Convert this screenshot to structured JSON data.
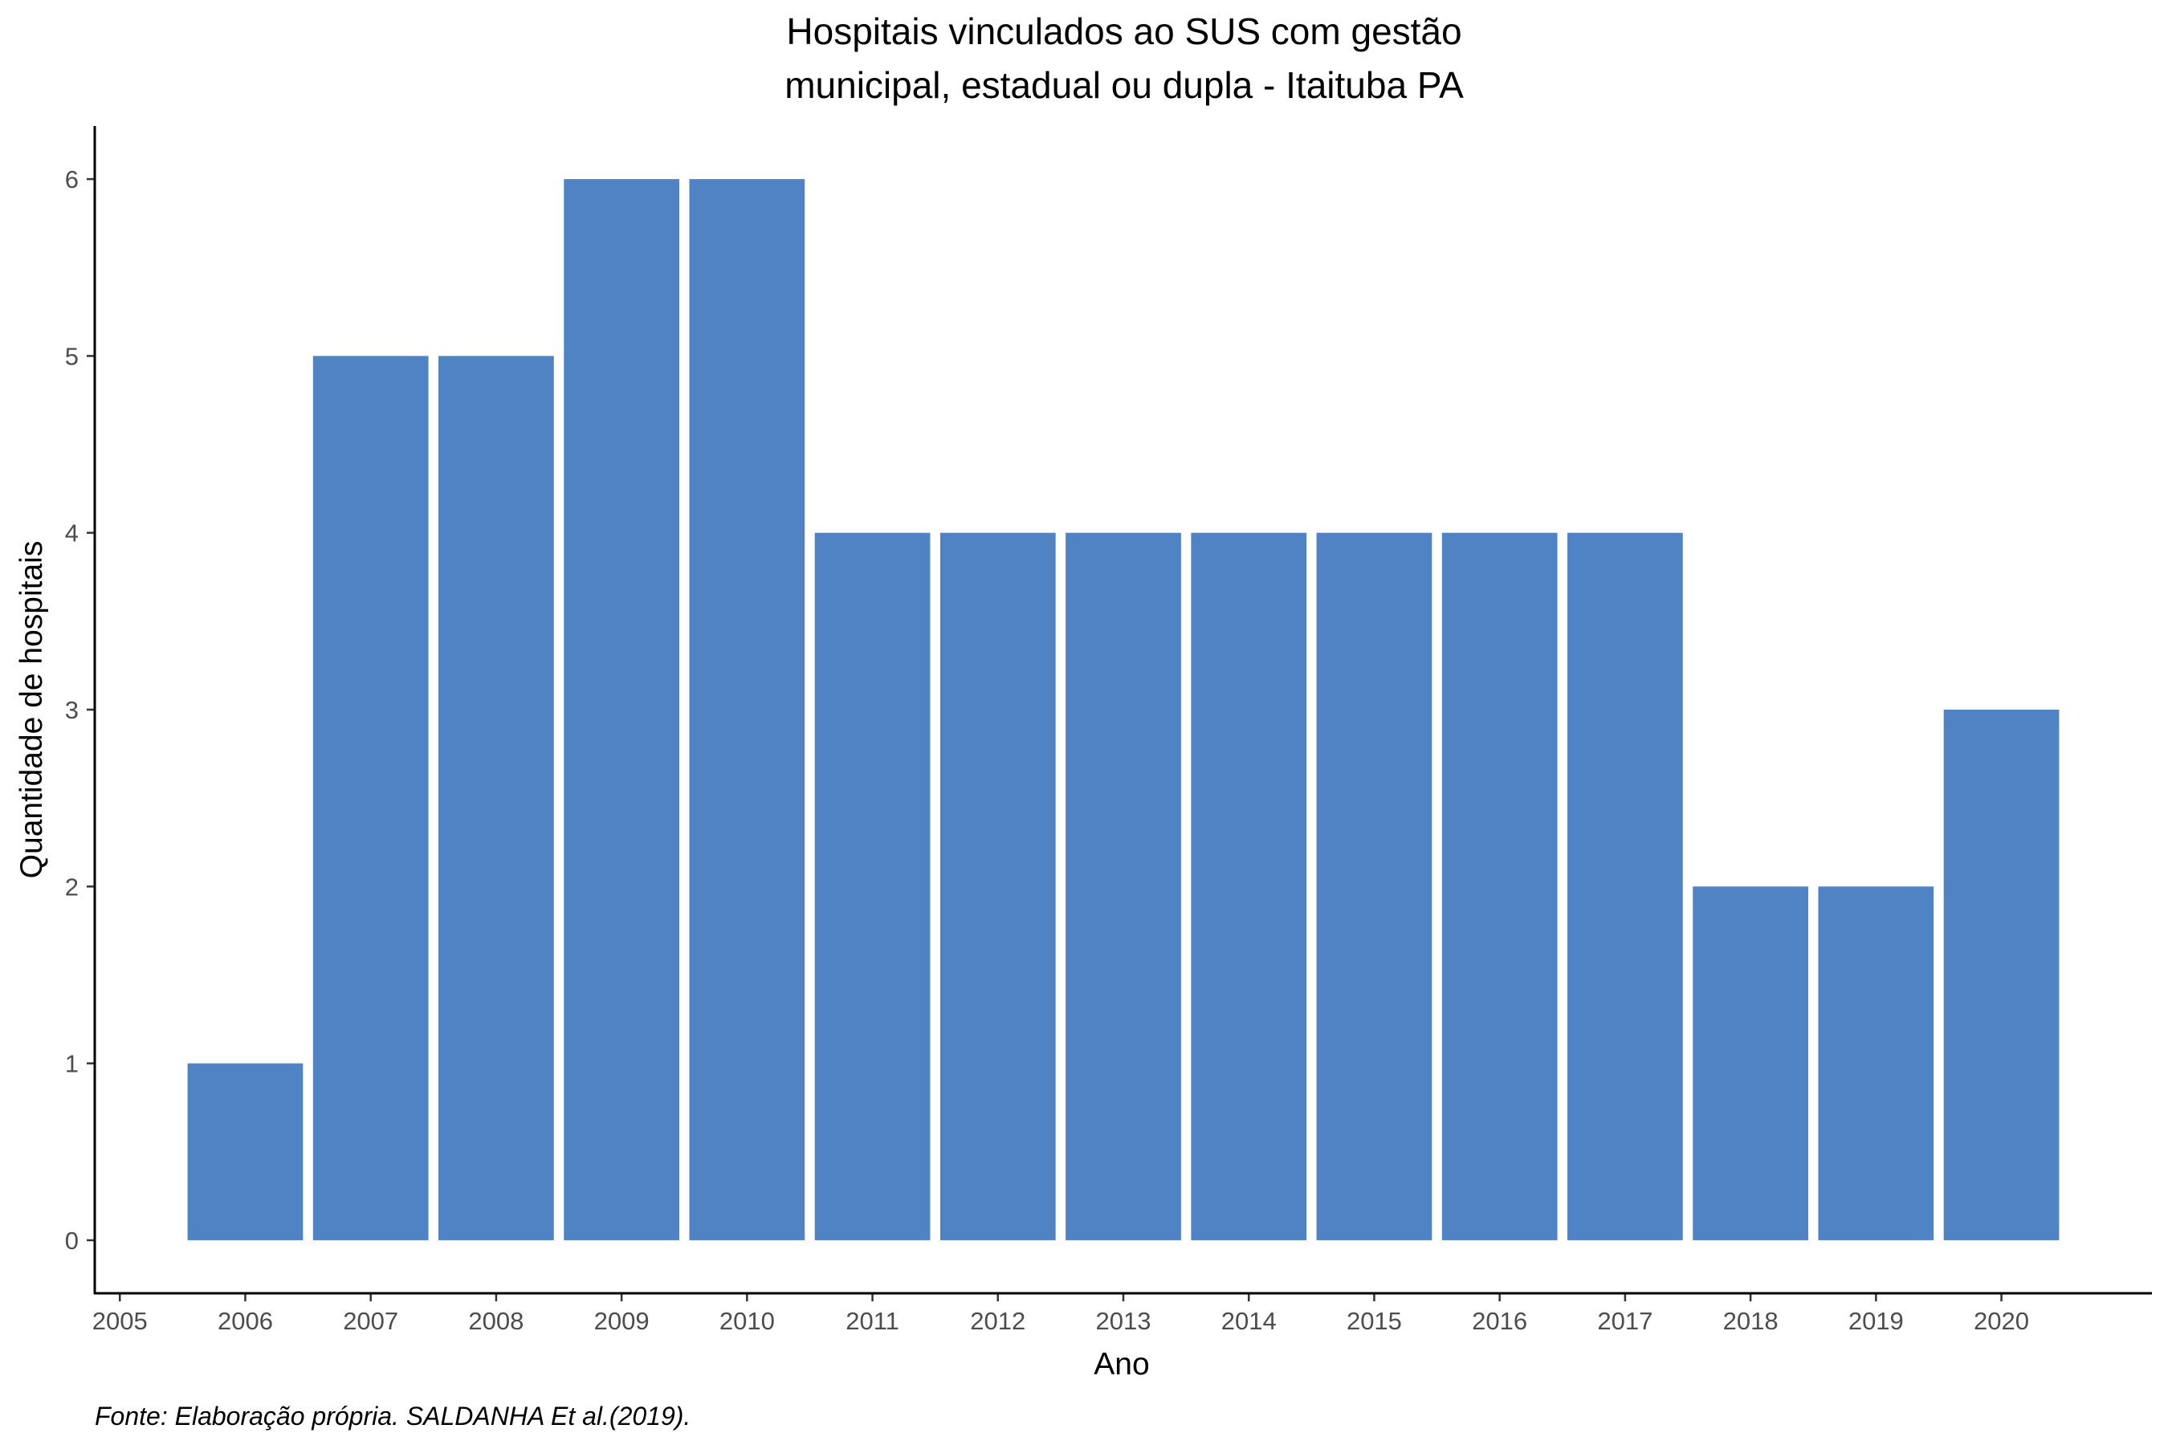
{
  "chart_data": {
    "type": "bar",
    "title_lines": [
      "Hospitais vinculados ao SUS com gestão",
      "municipal, estadual ou dupla -  Itaituba PA"
    ],
    "xlabel": "Ano",
    "ylabel": "Quantidade de hospitais",
    "caption": "Fonte: Elaboração própria. SALDANHA Et al.(2019).",
    "x_ticks": [
      "2005",
      "2006",
      "2007",
      "2008",
      "2009",
      "2010",
      "2011",
      "2012",
      "2013",
      "2014",
      "2015",
      "2016",
      "2017",
      "2018",
      "2019",
      "2020"
    ],
    "y_ticks": [
      "0",
      "1",
      "2",
      "3",
      "4",
      "5",
      "6"
    ],
    "categories": [
      "2006",
      "2007",
      "2008",
      "2009",
      "2010",
      "2011",
      "2012",
      "2013",
      "2014",
      "2015",
      "2016",
      "2017",
      "2018",
      "2019",
      "2020"
    ],
    "values": [
      1,
      5,
      5,
      6,
      6,
      4,
      4,
      4,
      4,
      4,
      4,
      4,
      2,
      2,
      3
    ],
    "xlim": [
      2004.8,
      2021.2
    ],
    "ylim": [
      -0.3,
      6.3
    ],
    "bar_color": "#4f83c3",
    "grid": false,
    "legend": "none"
  }
}
